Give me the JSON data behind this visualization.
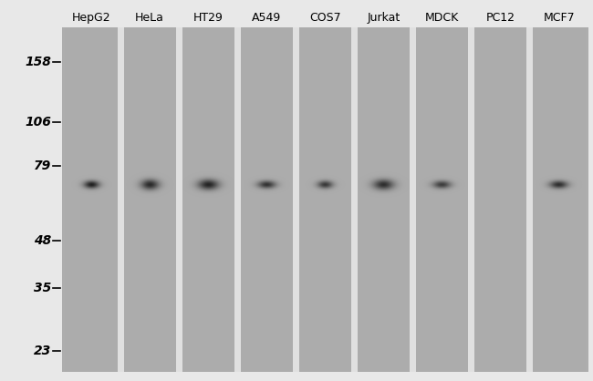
{
  "lane_labels": [
    "HepG2",
    "HeLa",
    "HT29",
    "A549",
    "COS7",
    "Jurkat",
    "MDCK",
    "PC12",
    "MCF7"
  ],
  "mw_markers": [
    158,
    106,
    79,
    48,
    35,
    23
  ],
  "mw_labels": [
    "158",
    "106",
    "79",
    "48",
    "35",
    "23"
  ],
  "fig_bg": "#e8e8e8",
  "gel_bg": "#a0a0a0",
  "lane_bg_light": "#b0b0b0",
  "lane_bg_dark": "#989898",
  "gap_color": "#d8d8d8",
  "band_intensities": [
    0.95,
    0.88,
    0.92,
    0.82,
    0.78,
    0.85,
    0.75,
    0.0,
    0.85
  ],
  "band_sigma_x": [
    6,
    7,
    8,
    7,
    6,
    8,
    7,
    4,
    7
  ],
  "band_sigma_y": [
    3,
    4,
    4,
    3,
    3,
    4,
    3,
    2,
    3
  ],
  "label_fontsize": 9,
  "marker_fontsize": 10,
  "n_lanes": 9
}
